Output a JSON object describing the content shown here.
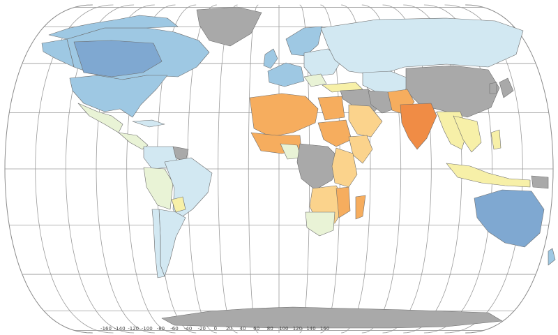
{
  "map": {
    "palette": {
      "dark_blue": "#7fa8d1",
      "mid_blue": "#9ec8e3",
      "light_blue": "#d2e8f2",
      "pale_green": "#e9f3d6",
      "pale_yellow": "#f7f0a8",
      "light_orange": "#fbd38c",
      "orange": "#f6ad5e",
      "dark_orange": "#f08c45",
      "no_data": "#a9a9a9"
    },
    "longitude_labels": [
      "-160",
      "-140",
      "-120",
      "-100",
      "-80",
      "-60",
      "-40",
      "-20",
      "0",
      "20",
      "40",
      "60",
      "80",
      "100",
      "120",
      "140",
      "160"
    ]
  }
}
